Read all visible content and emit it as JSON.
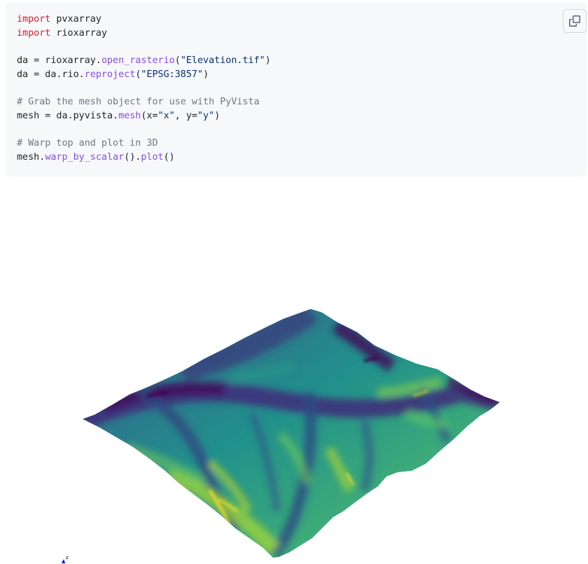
{
  "code_block": {
    "language": "python",
    "lines": [
      [
        {
          "t": "kw",
          "v": "import"
        },
        {
          "t": "op",
          "v": " pvxarray"
        }
      ],
      [
        {
          "t": "kw",
          "v": "import"
        },
        {
          "t": "op",
          "v": " rioxarray"
        }
      ],
      [],
      [
        {
          "t": "op",
          "v": "da = rioxarray."
        },
        {
          "t": "fn",
          "v": "open_rasterio"
        },
        {
          "t": "op",
          "v": "("
        },
        {
          "t": "str",
          "v": "\"Elevation.tif\""
        },
        {
          "t": "op",
          "v": ")"
        }
      ],
      [
        {
          "t": "op",
          "v": "da = da.rio."
        },
        {
          "t": "fn",
          "v": "reproject"
        },
        {
          "t": "op",
          "v": "("
        },
        {
          "t": "str",
          "v": "\"EPSG:3857\""
        },
        {
          "t": "op",
          "v": ")"
        }
      ],
      [],
      [
        {
          "t": "cm",
          "v": "# Grab the mesh object for use with PyVista"
        }
      ],
      [
        {
          "t": "op",
          "v": "mesh = da.pyvista."
        },
        {
          "t": "fn",
          "v": "mesh"
        },
        {
          "t": "op",
          "v": "(x="
        },
        {
          "t": "str",
          "v": "\"x\""
        },
        {
          "t": "op",
          "v": ", y="
        },
        {
          "t": "str",
          "v": "\"y\""
        },
        {
          "t": "op",
          "v": ")"
        }
      ],
      [],
      [
        {
          "t": "cm",
          "v": "# Warp top and plot in 3D"
        }
      ],
      [
        {
          "t": "op",
          "v": "mesh."
        },
        {
          "t": "fn",
          "v": "warp_by_scalar"
        },
        {
          "t": "op",
          "v": "()."
        },
        {
          "t": "fn",
          "v": "plot"
        },
        {
          "t": "op",
          "v": "()"
        }
      ]
    ],
    "copy_icon": "copy-icon"
  },
  "plot": {
    "colormap": [
      "#440154",
      "#3b528b",
      "#21918c",
      "#5ec962",
      "#b5de2b",
      "#fde725"
    ],
    "axes_label": "z"
  },
  "colors": {
    "keyword": "#cf222e",
    "function": "#8250df",
    "string": "#0a3069",
    "comment": "#6e7781",
    "code_bg": "#f6f8fa"
  }
}
